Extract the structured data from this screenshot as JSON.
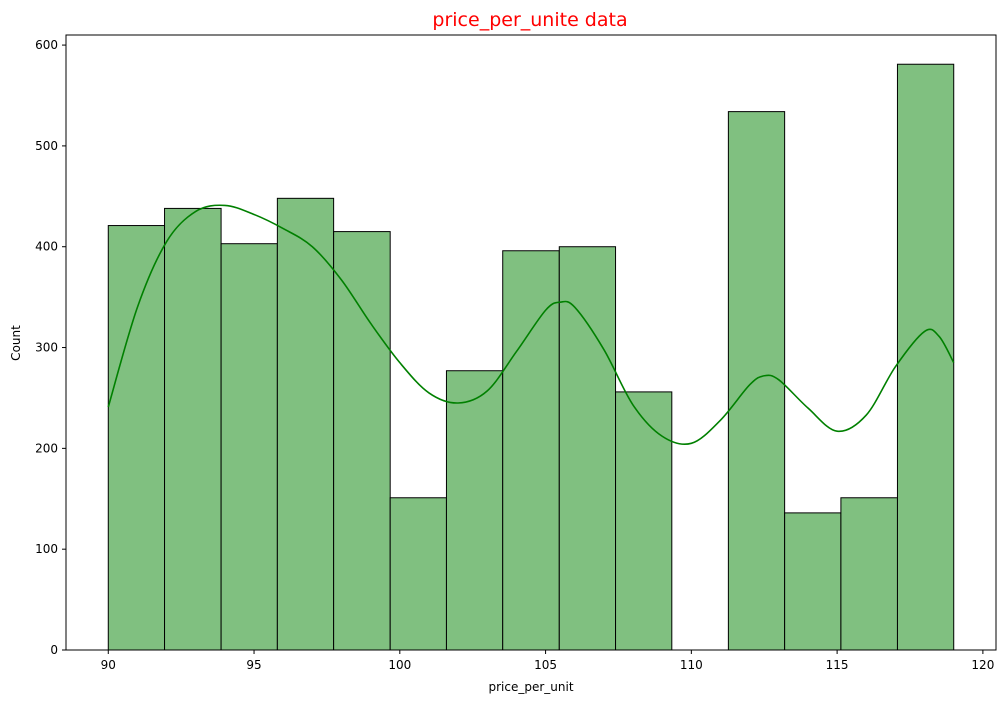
{
  "chart_data": {
    "type": "bar",
    "title": "price_per_unite data",
    "xlabel": "price_per_unit",
    "ylabel": "Count",
    "xlim": [
      88.55,
      120.45
    ],
    "ylim": [
      0,
      610
    ],
    "xticks": [
      90,
      95,
      100,
      105,
      110,
      115,
      120
    ],
    "yticks": [
      0,
      100,
      200,
      300,
      400,
      500,
      600
    ],
    "grid": false,
    "colors": {
      "title": "#ff0000",
      "bar_fill": "#80c080",
      "bar_edge": "#000000",
      "kde_line": "#008000"
    },
    "bins": [
      {
        "x0": 90.0,
        "x1": 91.93,
        "count": 421
      },
      {
        "x0": 91.93,
        "x1": 93.87,
        "count": 438
      },
      {
        "x0": 93.87,
        "x1": 95.8,
        "count": 403
      },
      {
        "x0": 95.8,
        "x1": 97.73,
        "count": 448
      },
      {
        "x0": 97.73,
        "x1": 99.67,
        "count": 415
      },
      {
        "x0": 99.67,
        "x1": 101.6,
        "count": 151
      },
      {
        "x0": 101.6,
        "x1": 103.53,
        "count": 277
      },
      {
        "x0": 103.53,
        "x1": 105.47,
        "count": 396
      },
      {
        "x0": 105.47,
        "x1": 107.4,
        "count": 400
      },
      {
        "x0": 107.4,
        "x1": 109.33,
        "count": 256
      },
      {
        "x0": 109.33,
        "x1": 111.27,
        "count": 0
      },
      {
        "x0": 111.27,
        "x1": 113.2,
        "count": 534
      },
      {
        "x0": 113.2,
        "x1": 115.13,
        "count": 136
      },
      {
        "x0": 115.13,
        "x1": 117.07,
        "count": 151
      },
      {
        "x0": 117.07,
        "x1": 119.0,
        "count": 581
      }
    ],
    "kde": {
      "x": [
        90.0,
        91.0,
        92.0,
        93.0,
        94.0,
        95.0,
        96.0,
        97.0,
        98.0,
        99.0,
        100.0,
        101.0,
        102.0,
        103.0,
        104.0,
        105.0,
        105.5,
        106.0,
        107.0,
        108.0,
        109.0,
        110.0,
        111.0,
        112.0,
        112.5,
        113.0,
        114.0,
        115.0,
        116.0,
        117.0,
        118.0,
        118.5,
        119.0
      ],
      "y": [
        241,
        340,
        405,
        435,
        441,
        432,
        418,
        400,
        367,
        324,
        285,
        255,
        245,
        257,
        296,
        337,
        345,
        340,
        298,
        243,
        212,
        205,
        228,
        263,
        272,
        268,
        240,
        217,
        233,
        281,
        316,
        311,
        285
      ]
    }
  }
}
